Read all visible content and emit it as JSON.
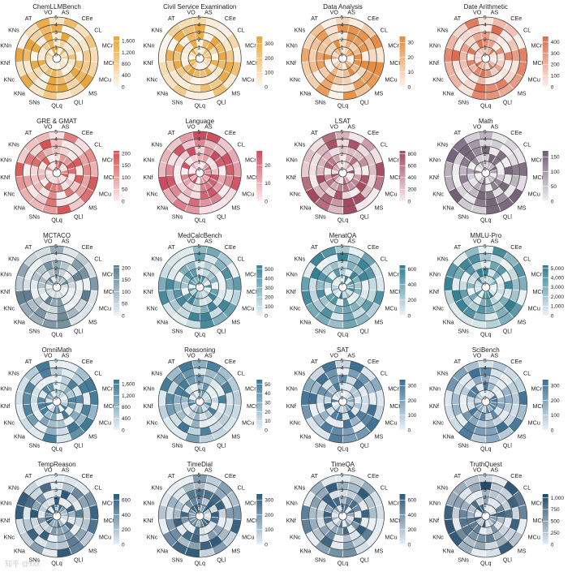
{
  "chart_data": {
    "type": "radial-heatmap",
    "layout": {
      "rows": 5,
      "cols": 4
    },
    "ring_levels": [
      "0",
      "1",
      "2",
      "3",
      "4",
      "5"
    ],
    "categories": [
      "VO",
      "AS",
      "CEe",
      "CL",
      "MCr",
      "MCt",
      "MCu",
      "MS",
      "QLl",
      "QLq",
      "SNs",
      "KNa",
      "KNc",
      "KNf",
      "KNn",
      "KNs",
      "AT"
    ],
    "panels": [
      {
        "title": "ChemLLMBench",
        "colors": [
          "#fdf6ec",
          "#e9a43a"
        ],
        "ticks": [
          0,
          400,
          800,
          1200,
          1600
        ],
        "tick_labels": [
          "0",
          "400",
          "800",
          "1,200",
          "1,600"
        ],
        "max": 1750
      },
      {
        "title": "Civil Service Examination",
        "colors": [
          "#fdf6ec",
          "#e9a43a"
        ],
        "ticks": [
          0,
          100,
          200,
          300
        ],
        "tick_labels": [
          "0",
          "100",
          "200",
          "300"
        ],
        "max": 350
      },
      {
        "title": "Data Analysis",
        "colors": [
          "#fdf3ea",
          "#e58a3c"
        ],
        "ticks": [
          0,
          10,
          20,
          30
        ],
        "tick_labels": [
          "0",
          "10",
          "20",
          "30"
        ],
        "max": 34
      },
      {
        "title": "Date Arithmetic",
        "colors": [
          "#fdf0ea",
          "#dd6a4b"
        ],
        "ticks": [
          0,
          100,
          200,
          300,
          400
        ],
        "tick_labels": [
          "0",
          "100",
          "200",
          "300",
          "400"
        ],
        "max": 450
      },
      {
        "title": "GRE & GMAT",
        "colors": [
          "#fbeeee",
          "#d44e4e"
        ],
        "ticks": [
          0,
          50,
          100,
          150,
          200
        ],
        "tick_labels": [
          "0",
          "50",
          "100",
          "150",
          "200"
        ],
        "max": 210
      },
      {
        "title": "Language",
        "colors": [
          "#fbeef1",
          "#cc4c5e"
        ],
        "ticks": [
          0,
          10,
          20
        ],
        "tick_labels": [
          "0",
          "10",
          "20"
        ],
        "max": 28
      },
      {
        "title": "LSAT",
        "colors": [
          "#f7edf0",
          "#a2485f"
        ],
        "ticks": [
          0,
          200,
          400,
          600,
          800
        ],
        "tick_labels": [
          "0",
          "200",
          "400",
          "600",
          "800"
        ],
        "max": 850
      },
      {
        "title": "Math",
        "colors": [
          "#f2f0f3",
          "#6f5c72"
        ],
        "ticks": [
          0,
          50,
          100,
          150
        ],
        "tick_labels": [
          "0",
          "50",
          "100",
          "150"
        ],
        "max": 170
      },
      {
        "title": "MCTACO",
        "colors": [
          "#eef3f6",
          "#5c7c8e"
        ],
        "ticks": [
          0,
          50,
          100,
          150,
          200
        ],
        "tick_labels": [
          "0",
          "50",
          "100",
          "150",
          "200"
        ],
        "max": 210
      },
      {
        "title": "MedCalcBench",
        "colors": [
          "#ecf4f6",
          "#3a8296"
        ],
        "ticks": [
          0,
          100,
          200,
          300,
          400,
          500
        ],
        "tick_labels": [
          "0",
          "100",
          "200",
          "300",
          "400",
          "500"
        ],
        "max": 540
      },
      {
        "title": "MenatQA",
        "colors": [
          "#ebf4f6",
          "#2f7d91"
        ],
        "ticks": [
          0,
          200,
          400,
          600
        ],
        "tick_labels": [
          "0",
          "200",
          "400",
          "600"
        ],
        "max": 650
      },
      {
        "title": "MMLU-Pro",
        "colors": [
          "#ebf4f6",
          "#2f7d91"
        ],
        "ticks": [
          0,
          1000,
          2000,
          3000,
          4000,
          5000
        ],
        "tick_labels": [
          "0",
          "1,000",
          "2,000",
          "3,000",
          "4,000",
          "5,000"
        ],
        "max": 5300
      },
      {
        "title": "OmniMath",
        "colors": [
          "#eaf2f6",
          "#3d7694"
        ],
        "ticks": [
          0,
          400,
          800,
          1200,
          1600
        ],
        "tick_labels": [
          "0",
          "400",
          "800",
          "1,200",
          "1,600"
        ],
        "max": 1750
      },
      {
        "title": "Reasoning",
        "colors": [
          "#eaf2f6",
          "#3d7694"
        ],
        "ticks": [
          0,
          10,
          20,
          30,
          40,
          50
        ],
        "tick_labels": [
          "0",
          "10",
          "20",
          "30",
          "40",
          "50"
        ],
        "max": 55
      },
      {
        "title": "SAT",
        "colors": [
          "#eaf1f6",
          "#3a6e92"
        ],
        "ticks": [
          0,
          100,
          200,
          300
        ],
        "tick_labels": [
          "0",
          "100",
          "200",
          "300"
        ],
        "max": 340
      },
      {
        "title": "SciBench",
        "colors": [
          "#eaf1f6",
          "#3a6e92"
        ],
        "ticks": [
          0,
          100,
          200,
          300
        ],
        "tick_labels": [
          "0",
          "100",
          "200",
          "300"
        ],
        "max": 340
      },
      {
        "title": "TempReason",
        "colors": [
          "#e9eff4",
          "#2c5878"
        ],
        "ticks": [
          0,
          200,
          400,
          600
        ],
        "tick_labels": [
          "0",
          "200",
          "400",
          "600"
        ],
        "max": 680
      },
      {
        "title": "TimeDial",
        "colors": [
          "#e9eff4",
          "#2c5878"
        ],
        "ticks": [
          0,
          100,
          200,
          300
        ],
        "tick_labels": [
          "0",
          "100",
          "200",
          "300"
        ],
        "max": 340
      },
      {
        "title": "TimeQA",
        "colors": [
          "#e9eff4",
          "#2c5878"
        ],
        "ticks": [
          0,
          200,
          400,
          600
        ],
        "tick_labels": [
          "0",
          "200",
          "400",
          "600"
        ],
        "max": 680
      },
      {
        "title": "TruthQuest",
        "colors": [
          "#e8edf3",
          "#1f4868"
        ],
        "ticks": [
          0,
          250,
          500,
          750,
          1000
        ],
        "tick_labels": [
          "0",
          "250",
          "500",
          "750",
          "1,000"
        ],
        "max": 1080
      }
    ]
  },
  "watermark": "知乎 @xxx"
}
